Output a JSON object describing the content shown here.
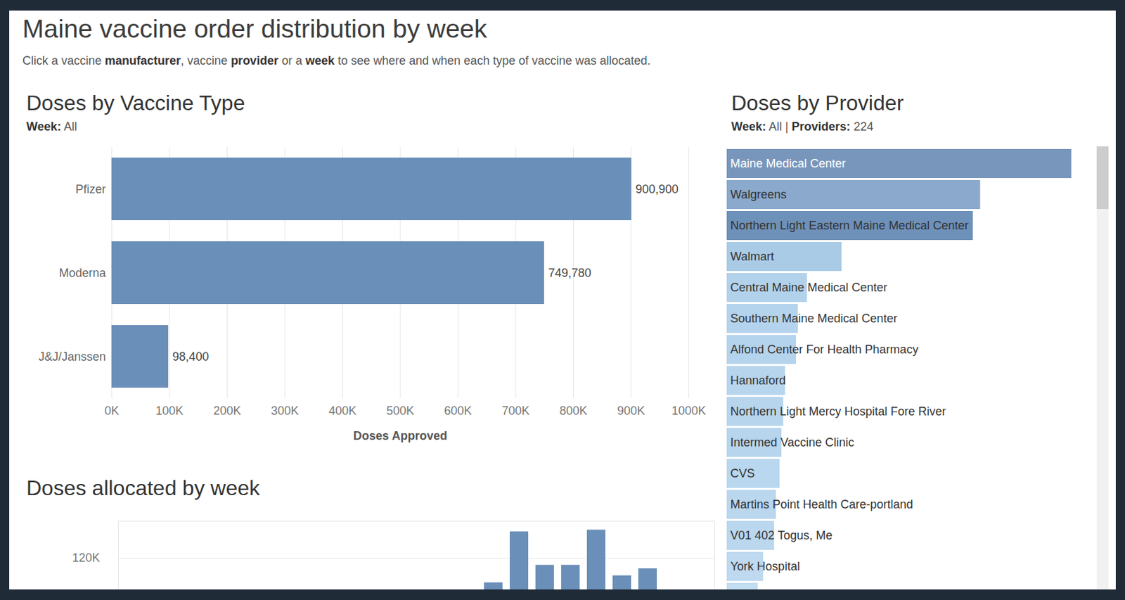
{
  "title": "Maine vaccine order distribution by week",
  "subtitle": [
    {
      "text": "Click a vaccine "
    },
    {
      "text": "manufacturer",
      "bold": true
    },
    {
      "text": ", vaccine "
    },
    {
      "text": "provider",
      "bold": true
    },
    {
      "text": " or a "
    },
    {
      "text": "week",
      "bold": true
    },
    {
      "text": " to see where and when each type of vaccine was allocated."
    }
  ],
  "chart_data": [
    {
      "type": "bar",
      "title": "Doses by Vaccine Type",
      "subtitle": [
        {
          "text": "Week:",
          "bold": true
        },
        {
          "text": " All"
        }
      ],
      "orientation": "horizontal",
      "categories": [
        "Pfizer",
        "Moderna",
        "J&J/Janssen"
      ],
      "values": [
        900900,
        749780,
        98400
      ],
      "value_labels": [
        "900,900",
        "749,780",
        "98,400"
      ],
      "data_labels": true,
      "color": "#6a8fb8",
      "xlim": [
        0,
        1000000
      ],
      "xticks": [
        {
          "value": 0,
          "label": "0K"
        },
        {
          "value": 100000,
          "label": "100K"
        },
        {
          "value": 200000,
          "label": "200K"
        },
        {
          "value": 300000,
          "label": "300K"
        },
        {
          "value": 400000,
          "label": "400K"
        },
        {
          "value": 500000,
          "label": "500K"
        },
        {
          "value": 600000,
          "label": "600K"
        },
        {
          "value": 700000,
          "label": "700K"
        },
        {
          "value": 800000,
          "label": "800K"
        },
        {
          "value": 900000,
          "label": "900K"
        },
        {
          "value": 1000000,
          "label": "1000K"
        }
      ],
      "xlabel": "Doses Approved",
      "grid": true
    },
    {
      "type": "bar",
      "title": "Doses allocated by week",
      "categories": [
        null,
        null,
        null,
        null,
        null,
        null,
        null,
        null,
        null,
        null,
        null,
        null,
        null,
        null,
        null,
        null,
        null,
        null,
        null,
        null,
        null,
        null,
        null
      ],
      "values": [
        null,
        null,
        null,
        null,
        null,
        null,
        null,
        null,
        null,
        null,
        null,
        null,
        null,
        null,
        106000,
        135000,
        116000,
        116000,
        136000,
        110000,
        114000,
        null,
        null
      ],
      "color": "#6a8fb8",
      "ylim": [
        102000,
        141000
      ],
      "yticks": [
        {
          "value": 120000,
          "label": "120K"
        }
      ],
      "grid": true
    },
    {
      "type": "bar",
      "title": "Doses by Provider",
      "subtitle": [
        {
          "text": "Week:",
          "bold": true
        },
        {
          "text": " All | "
        },
        {
          "text": "Providers:",
          "bold": true
        },
        {
          "text": " 224"
        }
      ],
      "orientation": "horizontal",
      "categories": [
        "Maine Medical Center",
        "Walgreens",
        "Northern Light Eastern Maine Medical Center",
        "Walmart",
        "Central Maine Medical Center",
        "Southern Maine Medical Center",
        "Alfond Center For Health Pharmacy",
        "Hannaford",
        "Northern Light Mercy Hospital Fore River",
        "Intermed Vaccine Clinic",
        "CVS",
        "Martins Point Health Care-portland",
        "V01 402 Togus, Me",
        "York Hospital",
        null
      ],
      "values": [
        189000,
        139000,
        135000,
        63000,
        44000,
        39000,
        38000,
        32000,
        31000,
        30000,
        29000,
        27000,
        26000,
        20000,
        17000
      ],
      "colors": [
        "#7896bb",
        "#8aa9cc",
        "#6e91b9",
        "#a9cbe6",
        "#b2d1ea",
        "#b4d3ec",
        "#b4d3ec",
        "#b7d5ed",
        "#b7d5ed",
        "#b7d5ed",
        "#b9d7ee",
        "#bad7ee",
        "#bad7ee",
        "#bed9f0",
        "#c3ddf1"
      ],
      "xlim": [
        0,
        200000
      ],
      "tick_labels": false,
      "grid": false
    }
  ]
}
